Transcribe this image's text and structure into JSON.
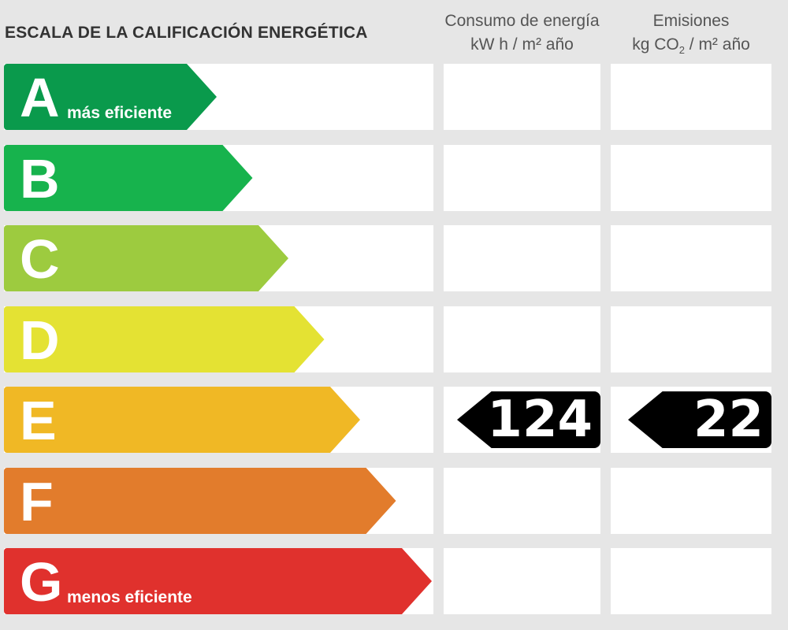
{
  "title": "ESCALA DE LA CALIFICACIÓN ENERGÉTICA",
  "columns": {
    "consumo": {
      "line1": "Consumo de energía",
      "line2": "kW h  / m² año"
    },
    "emisiones": {
      "line1": "Emisiones",
      "line2_pre": "kg CO",
      "line2_sub": "2",
      "line2_post": "  / m² año"
    }
  },
  "chart_data": {
    "type": "bar",
    "title": "ESCALA DE LA CALIFICACIÓN ENERGÉTICA",
    "categories": [
      "A",
      "B",
      "C",
      "D",
      "E",
      "F",
      "G"
    ],
    "annotations": {
      "A": "más eficiente",
      "G": "menos eficiente"
    },
    "colors": [
      "#0a9a4c",
      "#17b34d",
      "#9dcb3f",
      "#e4e233",
      "#f0b825",
      "#e27c2c",
      "#e0312d"
    ],
    "rating": "E",
    "values": {
      "consumo_energia": 124,
      "emisiones": 22
    }
  },
  "labels": {
    "A": "A",
    "B": "B",
    "C": "C",
    "D": "D",
    "E": "E",
    "F": "F",
    "G": "G",
    "a_sub": "más eficiente",
    "g_sub": "menos eficiente",
    "consumo_value": "124",
    "emisiones_value": "22"
  }
}
